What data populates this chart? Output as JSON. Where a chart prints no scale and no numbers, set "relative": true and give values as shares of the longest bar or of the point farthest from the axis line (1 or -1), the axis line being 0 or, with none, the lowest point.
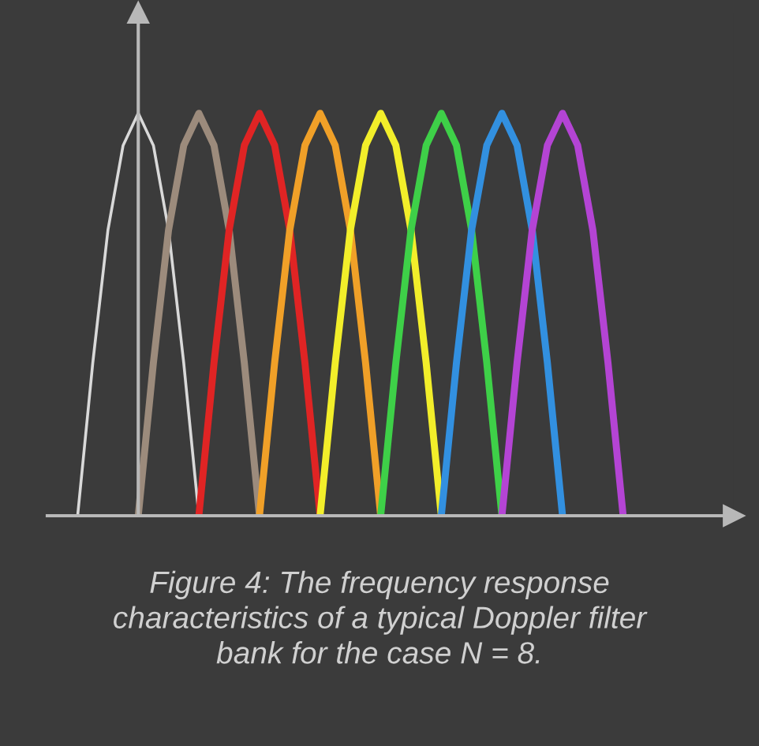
{
  "chart_data": {
    "type": "line",
    "relative": true,
    "annotations": [
      "Figure 4: The frequency response characteristics of a typical Doppler filter bank for the case N = 8."
    ],
    "categories": [
      null,
      null,
      null,
      null,
      null,
      null,
      null,
      null,
      null,
      null,
      null,
      null,
      null,
      null,
      null,
      null,
      null,
      null,
      null,
      null,
      null,
      null,
      null,
      null,
      null,
      null,
      null,
      null,
      null,
      null,
      null,
      null,
      null,
      null,
      null,
      null,
      null
    ],
    "series": [
      {
        "color": "#d9d9d9",
        "values": [
          0,
          0.38,
          0.71,
          0.92,
          1,
          0.92,
          0.71,
          0.38,
          0,
          null,
          null,
          null,
          null,
          null,
          null,
          null,
          null,
          null,
          null,
          null,
          null,
          null,
          null,
          null,
          null,
          null,
          null,
          null,
          null,
          null,
          null,
          null,
          null,
          null,
          null,
          null,
          null
        ]
      },
      {
        "color": "#9c8b7c",
        "values": [
          null,
          null,
          null,
          null,
          0,
          0.38,
          0.71,
          0.92,
          1,
          0.92,
          0.71,
          0.38,
          0,
          null,
          null,
          null,
          null,
          null,
          null,
          null,
          null,
          null,
          null,
          null,
          null,
          null,
          null,
          null,
          null,
          null,
          null,
          null,
          null,
          null,
          null,
          null,
          null
        ]
      },
      {
        "color": "#e02424",
        "values": [
          null,
          null,
          null,
          null,
          null,
          null,
          null,
          null,
          0,
          0.38,
          0.71,
          0.92,
          1,
          0.92,
          0.71,
          0.38,
          0,
          null,
          null,
          null,
          null,
          null,
          null,
          null,
          null,
          null,
          null,
          null,
          null,
          null,
          null,
          null,
          null,
          null,
          null,
          null,
          null
        ]
      },
      {
        "color": "#f0a028",
        "values": [
          null,
          null,
          null,
          null,
          null,
          null,
          null,
          null,
          null,
          null,
          null,
          null,
          0,
          0.38,
          0.71,
          0.92,
          1,
          0.92,
          0.71,
          0.38,
          0,
          null,
          null,
          null,
          null,
          null,
          null,
          null,
          null,
          null,
          null,
          null,
          null,
          null,
          null,
          null,
          null
        ]
      },
      {
        "color": "#f2ee2a",
        "values": [
          null,
          null,
          null,
          null,
          null,
          null,
          null,
          null,
          null,
          null,
          null,
          null,
          null,
          null,
          null,
          null,
          0,
          0.38,
          0.71,
          0.92,
          1,
          0.92,
          0.71,
          0.38,
          0,
          null,
          null,
          null,
          null,
          null,
          null,
          null,
          null,
          null,
          null,
          null,
          null
        ]
      },
      {
        "color": "#3ed048",
        "values": [
          null,
          null,
          null,
          null,
          null,
          null,
          null,
          null,
          null,
          null,
          null,
          null,
          null,
          null,
          null,
          null,
          null,
          null,
          null,
          null,
          0,
          0.38,
          0.71,
          0.92,
          1,
          0.92,
          0.71,
          0.38,
          0,
          null,
          null,
          null,
          null,
          null,
          null,
          null,
          null
        ]
      },
      {
        "color": "#3290e0",
        "values": [
          null,
          null,
          null,
          null,
          null,
          null,
          null,
          null,
          null,
          null,
          null,
          null,
          null,
          null,
          null,
          null,
          null,
          null,
          null,
          null,
          null,
          null,
          null,
          null,
          0,
          0.38,
          0.71,
          0.92,
          1,
          0.92,
          0.71,
          0.38,
          0,
          null,
          null,
          null,
          null
        ]
      },
      {
        "color": "#b444d4",
        "values": [
          null,
          null,
          null,
          null,
          null,
          null,
          null,
          null,
          null,
          null,
          null,
          null,
          null,
          null,
          null,
          null,
          null,
          null,
          null,
          null,
          null,
          null,
          null,
          null,
          null,
          null,
          null,
          null,
          0,
          0.38,
          0.71,
          0.92,
          1,
          0.92,
          0.71,
          0.38,
          0
        ]
      }
    ]
  }
}
